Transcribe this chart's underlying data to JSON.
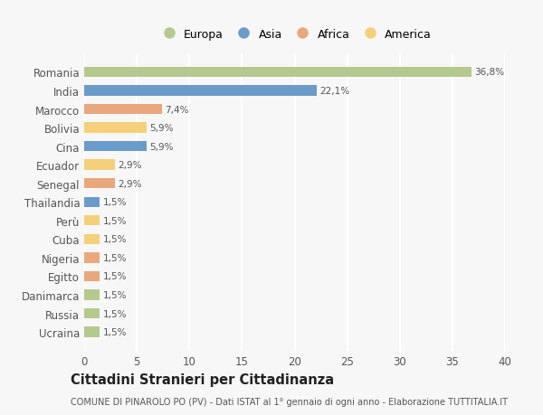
{
  "categories": [
    "Romania",
    "India",
    "Marocco",
    "Bolivia",
    "Cina",
    "Ecuador",
    "Senegal",
    "Thailandia",
    "Perù",
    "Cuba",
    "Nigeria",
    "Egitto",
    "Danimarca",
    "Russia",
    "Ucraina"
  ],
  "values": [
    36.8,
    22.1,
    7.4,
    5.9,
    5.9,
    2.9,
    2.9,
    1.5,
    1.5,
    1.5,
    1.5,
    1.5,
    1.5,
    1.5,
    1.5
  ],
  "labels": [
    "36,8%",
    "22,1%",
    "7,4%",
    "5,9%",
    "5,9%",
    "2,9%",
    "2,9%",
    "1,5%",
    "1,5%",
    "1,5%",
    "1,5%",
    "1,5%",
    "1,5%",
    "1,5%",
    "1,5%"
  ],
  "colors": [
    "#b5c98e",
    "#6b9bc9",
    "#e8a87c",
    "#f5d07a",
    "#6b9bc9",
    "#f5d07a",
    "#e8a87c",
    "#6b9bc9",
    "#f5d07a",
    "#f5d07a",
    "#e8a87c",
    "#e8a87c",
    "#b5c98e",
    "#b5c98e",
    "#b5c98e"
  ],
  "legend": [
    "Europa",
    "Asia",
    "Africa",
    "America"
  ],
  "legend_colors": [
    "#b5c98e",
    "#6b9bc9",
    "#e8a87c",
    "#f5d07a"
  ],
  "title": "Cittadini Stranieri per Cittadinanza",
  "subtitle": "COMUNE DI PINAROLO PO (PV) - Dati ISTAT al 1° gennaio di ogni anno - Elaborazione TUTTITALIA.IT",
  "xlim": [
    0,
    40
  ],
  "xticks": [
    0,
    5,
    10,
    15,
    20,
    25,
    30,
    35,
    40
  ],
  "background_color": "#f7f7f7",
  "grid_color": "#ffffff",
  "bar_height": 0.55
}
